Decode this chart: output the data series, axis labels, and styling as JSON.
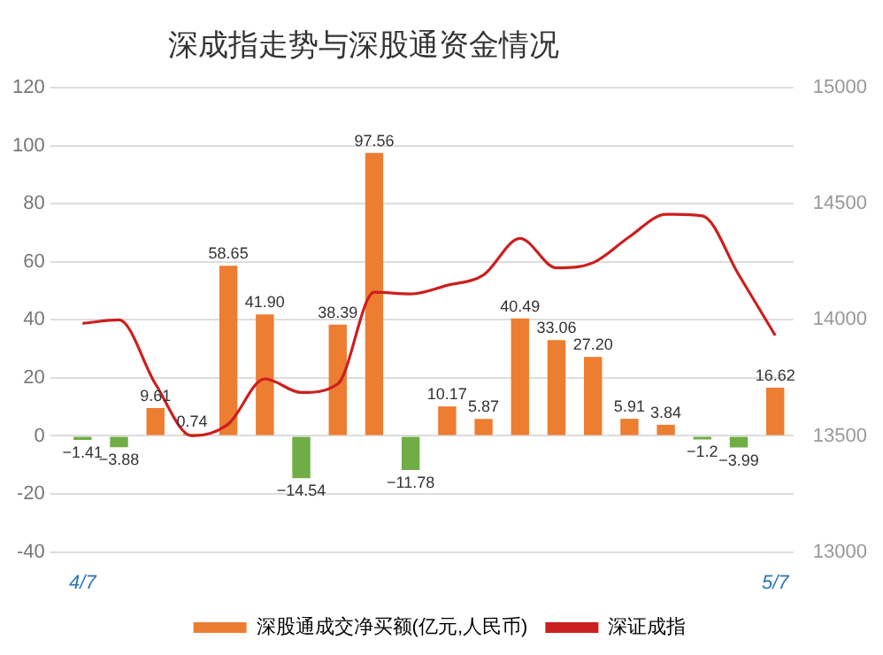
{
  "chart_data": {
    "type": "bar",
    "title": "深成指走势与深股通资金情况",
    "categories": [
      "4/7",
      null,
      null,
      null,
      null,
      null,
      null,
      null,
      null,
      null,
      null,
      null,
      null,
      null,
      null,
      null,
      null,
      null,
      null,
      "5/7"
    ],
    "series": [
      {
        "name": "深股通成交净买额(亿元,人民币)",
        "color": "#ed7d31",
        "colors": [
          "#70ad47",
          "#70ad47",
          "#ed7d31",
          "#ed7d31",
          "#ed7d31",
          "#ed7d31",
          "#70ad47",
          "#ed7d31",
          "#ed7d31",
          "#70ad47",
          "#ed7d31",
          "#ed7d31",
          "#ed7d31",
          "#ed7d31",
          "#ed7d31",
          "#ed7d31",
          "#ed7d31",
          "#70ad47",
          "#70ad47",
          "#ed7d31"
        ],
        "values": [
          -1.41,
          -3.88,
          9.61,
          0.74,
          58.65,
          41.9,
          -14.54,
          38.39,
          97.56,
          -11.78,
          10.17,
          5.87,
          40.49,
          33.06,
          27.2,
          5.91,
          3.84,
          -1.2,
          -3.99,
          16.62
        ],
        "value_labels": [
          "−1.41",
          "−3.88",
          "9.61",
          "0.74",
          "58.65",
          "41.90",
          "−14.54",
          "38.39",
          "97.56",
          "−11.78",
          "10.17",
          "5.87",
          "40.49",
          "33.06",
          "27.20",
          "5.91",
          "3.84",
          "−1.2",
          "−3.99",
          "16.62"
        ]
      },
      {
        "name": "深证成指",
        "type": "line",
        "axis": "y2",
        "color": "#cc1f1f",
        "values": [
          13985,
          14000,
          13724,
          13500,
          13552,
          13746,
          13687,
          13724,
          14119,
          14112,
          14149,
          14194,
          14351,
          14224,
          14246,
          14358,
          14455,
          14448,
          14194,
          13933
        ]
      }
    ],
    "ylim": [
      -40,
      120
    ],
    "yticks": [
      -40,
      -20,
      0,
      20,
      40,
      60,
      80,
      100,
      120
    ],
    "y2lim": [
      13000,
      15000
    ],
    "y2ticks": [
      13000,
      13500,
      14000,
      14500,
      15000
    ],
    "grid": "y",
    "legend": "bottom",
    "marker": "none",
    "line_style": "solid"
  }
}
